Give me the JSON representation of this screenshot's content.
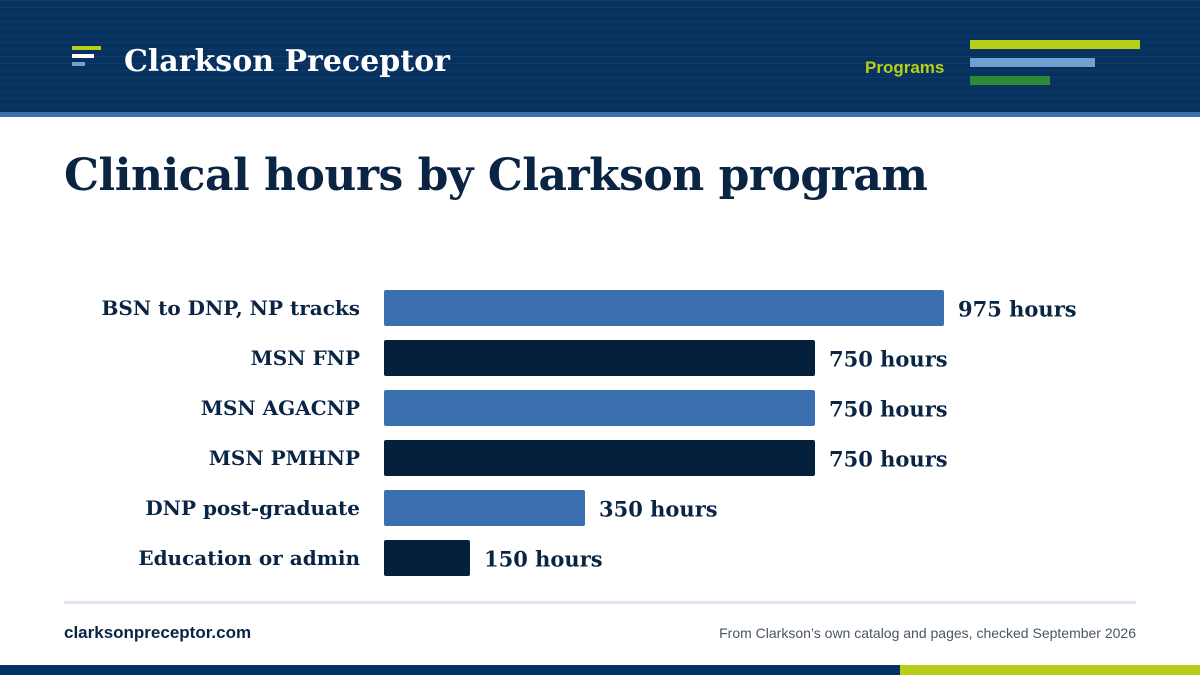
{
  "header": {
    "brand": "Clarkson Preceptor",
    "nav_label": "Programs",
    "logo_icon": "stacked-lines-logo-icon"
  },
  "page": {
    "title": "Clinical hours by Clarkson program"
  },
  "colors": {
    "navy": "#07315f",
    "dark_navy": "#0a2544",
    "bar_blue": "#3a6fb0",
    "bar_dark": "#05203d",
    "lime": "#b8cf1a",
    "light_blue": "#6fa0cf",
    "green": "#2e8a36"
  },
  "chart_data": {
    "type": "bar",
    "orientation": "horizontal",
    "categories": [
      "BSN to DNP, NP tracks",
      "MSN FNP",
      "MSN AGACNP",
      "MSN PMHNP",
      "DNP post-graduate",
      "Education or admin"
    ],
    "values": [
      975,
      750,
      750,
      750,
      350,
      150
    ],
    "value_labels": [
      "975 hours",
      "750 hours",
      "750 hours",
      "750 hours",
      "350 hours",
      "150 hours"
    ],
    "bar_colors": [
      "#3a6fb0",
      "#05203d",
      "#3a6fb0",
      "#05203d",
      "#3a6fb0",
      "#05203d"
    ],
    "title": "Clinical hours by Clarkson program",
    "xlabel": "",
    "ylabel": "",
    "xlim": [
      0,
      975
    ],
    "grid": false
  },
  "footer": {
    "site": "clarksonpreceptor.com",
    "source": "From Clarkson’s own catalog and pages, checked September 2026"
  }
}
